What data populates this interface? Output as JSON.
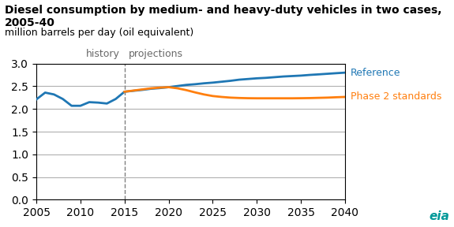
{
  "chart_data": {
    "type": "line",
    "title": "Diesel consumption by medium- and heavy-duty vehicles in two cases, 2005-40",
    "subtitle": "million barrels per day (oil equivalent)",
    "xlim": [
      2005,
      2040
    ],
    "xticks": [
      2005,
      2010,
      2015,
      2020,
      2025,
      2030,
      2035,
      2040
    ],
    "ylim": [
      0.0,
      3.0
    ],
    "yticks": [
      {
        "value": 0,
        "label": "0.0"
      },
      0.5,
      {
        "value": 1,
        "label": "1.0"
      },
      1.5,
      {
        "value": 2,
        "label": "2.0"
      },
      2.5,
      {
        "value": 3,
        "label": "3.0"
      }
    ],
    "grid": "y",
    "divider": {
      "x": 2015,
      "before": "history",
      "after": "projections"
    },
    "annotations": [
      {
        "text": "eia",
        "color": "#009999"
      }
    ],
    "series": [
      {
        "name": "Reference",
        "x": [
          2005,
          2006,
          2007,
          2008,
          2009,
          2010,
          2011,
          2012,
          2013,
          2014,
          2015,
          2016,
          2017,
          2018,
          2019,
          2020,
          2021,
          2022,
          2023,
          2024,
          2025,
          2026,
          2027,
          2028,
          2029,
          2030,
          2031,
          2032,
          2033,
          2034,
          2035,
          2036,
          2037,
          2038,
          2039,
          2040
        ],
        "values": [
          2.21,
          2.36,
          2.32,
          2.22,
          2.07,
          2.07,
          2.15,
          2.14,
          2.12,
          2.22,
          2.38,
          2.4,
          2.42,
          2.445,
          2.46,
          2.48,
          2.505,
          2.53,
          2.545,
          2.565,
          2.58,
          2.6,
          2.62,
          2.645,
          2.66,
          2.675,
          2.685,
          2.7,
          2.715,
          2.725,
          2.735,
          2.75,
          2.762,
          2.775,
          2.788,
          2.8
        ]
      },
      {
        "name": "Phase 2 standards",
        "x": [
          2015,
          2016,
          2017,
          2018,
          2019,
          2020,
          2021,
          2022,
          2023,
          2024,
          2025,
          2026,
          2027,
          2028,
          2029,
          2030,
          2031,
          2032,
          2033,
          2034,
          2035,
          2036,
          2037,
          2038,
          2039,
          2040
        ],
        "values": [
          2.38,
          2.405,
          2.43,
          2.455,
          2.47,
          2.48,
          2.455,
          2.415,
          2.365,
          2.32,
          2.285,
          2.265,
          2.25,
          2.242,
          2.237,
          2.235,
          2.235,
          2.235,
          2.235,
          2.235,
          2.237,
          2.24,
          2.245,
          2.25,
          2.258,
          2.265
        ]
      }
    ]
  }
}
